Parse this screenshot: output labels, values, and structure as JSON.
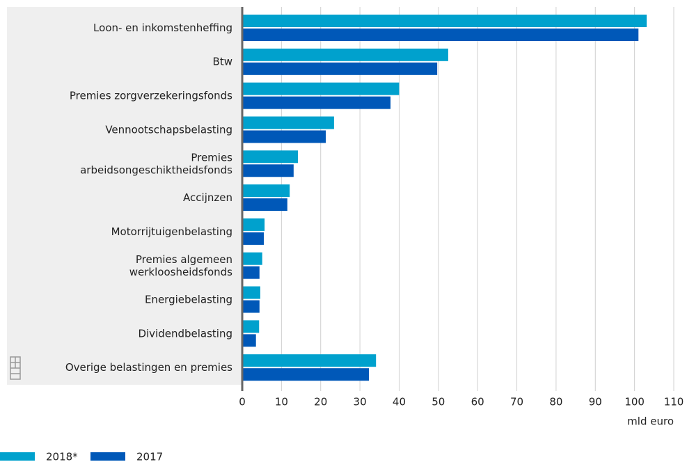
{
  "chart_data": {
    "type": "bar",
    "orientation": "horizontal",
    "categories": [
      "Loon- en inkomstenheffing",
      "Btw",
      "Premies zorgverzekeringsfonds",
      "Vennootschapsbelasting",
      "Premies\narbeidsongeschiktheidsfonds",
      "Accijnzen",
      "Motorrijtuigenbelasting",
      "Premies algemeen\nwerkloosheidsfonds",
      "Energiebelasting",
      "Dividendbelasting",
      "Overige belastingen en premies"
    ],
    "series": [
      {
        "name": "2018*",
        "color": "#00a1cd",
        "values": [
          103.1,
          52.5,
          40.0,
          23.4,
          14.2,
          12.1,
          5.7,
          5.1,
          4.6,
          4.3,
          34.1
        ]
      },
      {
        "name": "2017",
        "color": "#0058b8",
        "values": [
          101.0,
          49.7,
          37.8,
          21.3,
          13.1,
          11.5,
          5.5,
          4.4,
          4.4,
          3.5,
          32.3
        ]
      }
    ],
    "xlabel": "mld euro",
    "xlim": [
      0,
      110
    ],
    "xticks": [
      0,
      10,
      20,
      30,
      40,
      50,
      60,
      70,
      80,
      90,
      100,
      110
    ],
    "grid": true
  }
}
